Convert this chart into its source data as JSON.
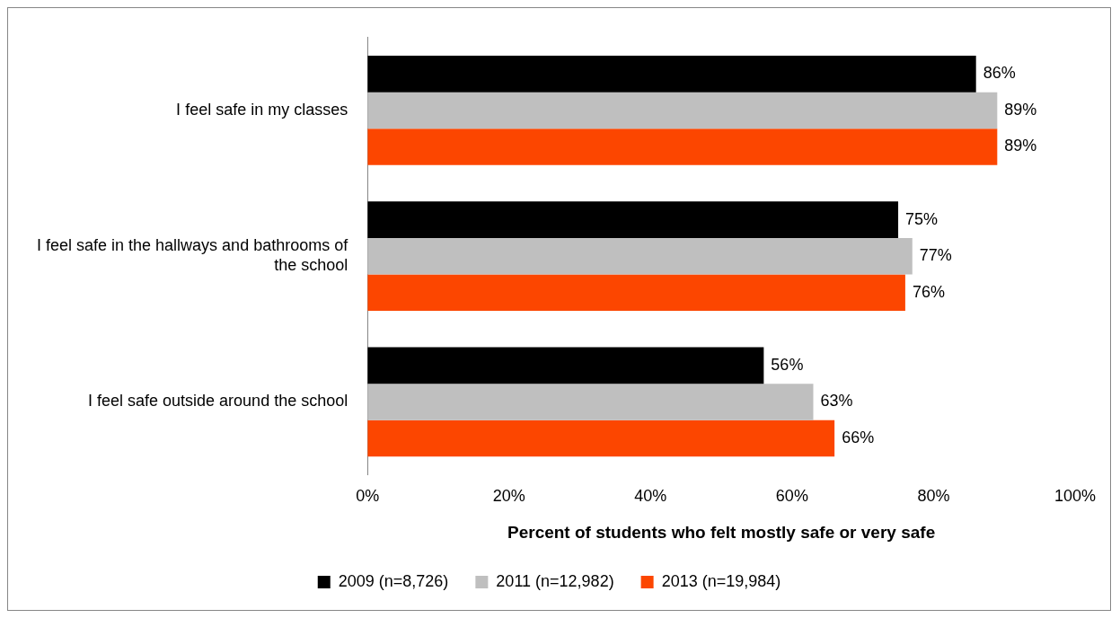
{
  "chart_data": {
    "type": "bar",
    "orientation": "horizontal",
    "xlabel": "Percent of students who felt mostly safe or very safe",
    "categories": [
      "I feel safe in my classes",
      "I feel safe in the hallways and bathrooms of the school",
      "I feel safe outside around the school"
    ],
    "series": [
      {
        "name": "2009 (n=8,726)",
        "color": "#000000",
        "values": [
          86,
          75,
          56
        ],
        "value_labels": [
          "86%",
          "75%",
          "56%"
        ]
      },
      {
        "name": "2011 (n=12,982)",
        "color": "#bfbfbf",
        "values": [
          89,
          77,
          63
        ],
        "value_labels": [
          "89%",
          "77%",
          "63%"
        ]
      },
      {
        "name": "2013 (n=19,984)",
        "color": "#fc4600",
        "values": [
          89,
          76,
          66
        ],
        "value_labels": [
          "89%",
          "76%",
          "66%"
        ]
      }
    ],
    "xlim": [
      0,
      100
    ],
    "xticks": [
      {
        "value": 0,
        "label": "0%"
      },
      {
        "value": 20,
        "label": "20%"
      },
      {
        "value": 40,
        "label": "40%"
      },
      {
        "value": 60,
        "label": "60%"
      },
      {
        "value": 80,
        "label": "80%"
      },
      {
        "value": 100,
        "label": "100%"
      }
    ],
    "grid": false,
    "legend": "bottom"
  }
}
